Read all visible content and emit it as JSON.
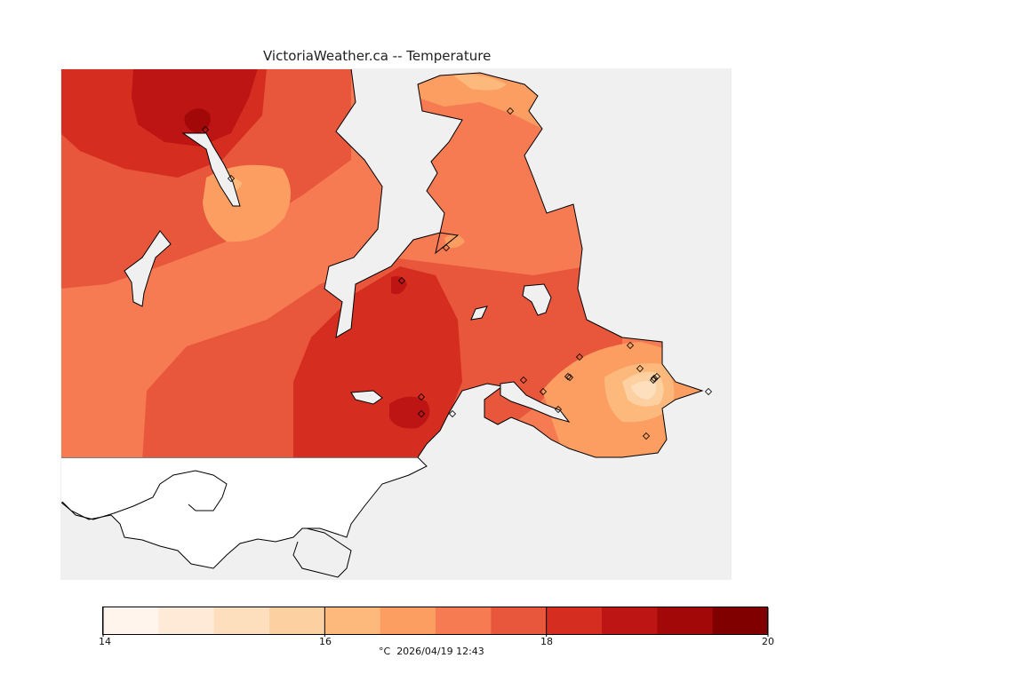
{
  "title": "VictoriaWeather.ca -- Temperature",
  "colorbar": {
    "min": 14,
    "max": 20,
    "tick_labels": [
      "14",
      "16",
      "18",
      "20"
    ],
    "colors": [
      "#fff5ec",
      "#feead6",
      "#fedfbd",
      "#fdd0a2",
      "#fdb97c",
      "#fc9d62",
      "#f67a52",
      "#e8563b",
      "#d52e21",
      "#bd1414",
      "#a30808",
      "#800000"
    ]
  },
  "caption": {
    "unit": "°C",
    "timestamp": "2026/04/19 12:43"
  },
  "map": {
    "background_color": "#f0f0f0",
    "station_marker": "diamond-marker",
    "station_count": 21
  }
}
